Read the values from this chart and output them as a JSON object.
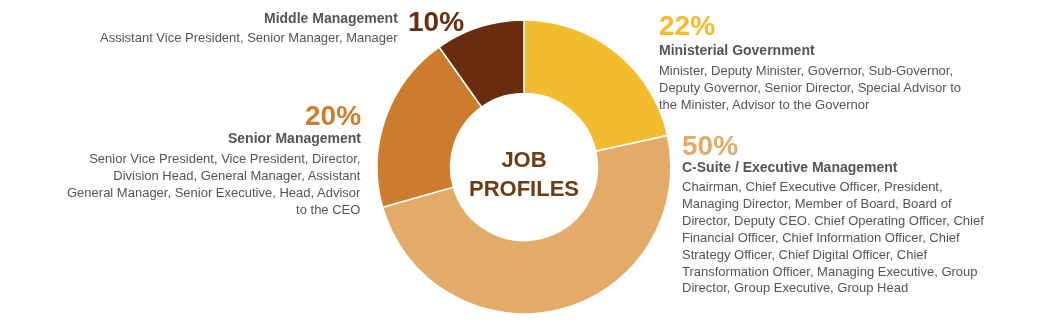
{
  "chart_data": {
    "type": "donut",
    "title": "JOB PROFILES",
    "categories": [
      "Ministerial Government",
      "C-Suite / Executive Management",
      "Senior Management",
      "Middle Management"
    ],
    "values": [
      22,
      50,
      20,
      10
    ],
    "value_labels": [
      "22%",
      "50%",
      "20%",
      "10%"
    ],
    "colors": [
      "#f3bc2e",
      "#e3aa68",
      "#cd7b2d",
      "#6a2d0f"
    ],
    "annotations": [
      "Minister, Deputy Minister, Governor, Sub-Governor, Deputy Governor, Senior Director, Special Advisor to the Minister, Advisor to the Governor",
      "Chairman, Chief Executive Officer, President, Managing Director, Member of Board, Board of Director, Deputy CEO. Chief Operating Officer, Chief Financial Officer, Chief Information Officer, Chief Strategy Officer, Chief Digital Officer, Chief Transformation Officer, Managing Executive, Group Director, Group Executive, Group Head",
      "Senior Vice President, Vice President, Director, Division Head, General Manager, Assistant General Manager, Senior Executive, Head, Advisor to the CEO",
      "Assistant Vice President, Senior Manager, Manager"
    ],
    "legend": false
  }
}
